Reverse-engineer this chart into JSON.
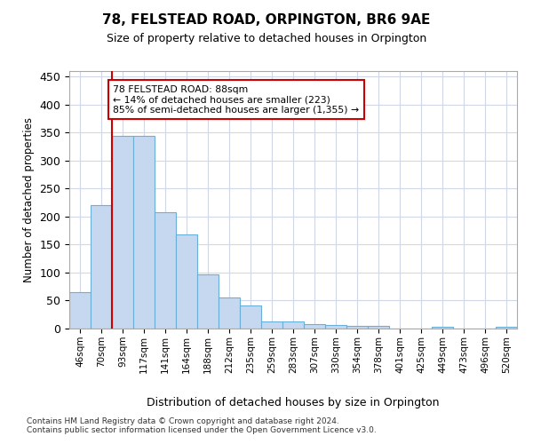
{
  "title": "78, FELSTEAD ROAD, ORPINGTON, BR6 9AE",
  "subtitle": "Size of property relative to detached houses in Orpington",
  "xlabel": "Distribution of detached houses by size in Orpington",
  "ylabel": "Number of detached properties",
  "categories": [
    "46sqm",
    "70sqm",
    "93sqm",
    "117sqm",
    "141sqm",
    "164sqm",
    "188sqm",
    "212sqm",
    "235sqm",
    "259sqm",
    "283sqm",
    "307sqm",
    "330sqm",
    "354sqm",
    "378sqm",
    "401sqm",
    "425sqm",
    "449sqm",
    "473sqm",
    "496sqm",
    "520sqm"
  ],
  "values": [
    65,
    220,
    345,
    345,
    208,
    168,
    97,
    56,
    42,
    13,
    13,
    8,
    6,
    5,
    5,
    0,
    0,
    3,
    0,
    0,
    3
  ],
  "bar_color": "#c5d8f0",
  "bar_edge_color": "#6baed6",
  "vline_x": 1.5,
  "vline_color": "#cc0000",
  "annotation_title": "78 FELSTEAD ROAD: 88sqm",
  "annotation_line1": "← 14% of detached houses are smaller (223)",
  "annotation_line2": "85% of semi-detached houses are larger (1,355) →",
  "annotation_box_color": "#cc0000",
  "ylim": [
    0,
    460
  ],
  "yticks": [
    0,
    50,
    100,
    150,
    200,
    250,
    300,
    350,
    400,
    450
  ],
  "footnote1": "Contains HM Land Registry data © Crown copyright and database right 2024.",
  "footnote2": "Contains public sector information licensed under the Open Government Licence v3.0.",
  "background_color": "#ffffff",
  "grid_color": "#d0d8e8"
}
